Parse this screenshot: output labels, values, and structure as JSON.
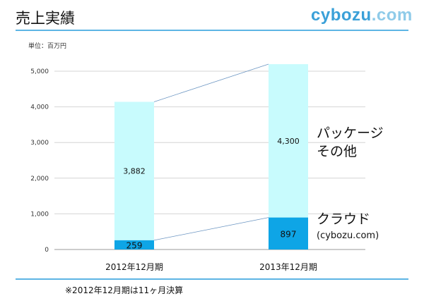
{
  "header": {
    "title": "売上実績",
    "brand_main": "cybozu",
    "brand_suffix": ".com"
  },
  "unit_label": "単位：百万円",
  "legend": {
    "package_line1": "パッケージ",
    "package_line2": "その他",
    "cloud_line1": "クラウド",
    "cloud_line2": "(cybozu.com)"
  },
  "footnote": "※2012年12月期は11ヶ月決算",
  "colors": {
    "cloud": "#0ea5e6",
    "package": "#c8fbfd",
    "accent_rule": "#5db5e4",
    "connector": "#6b95c2",
    "brand_main": "#3aa0d8",
    "brand_suffix": "#8fcbe9"
  },
  "chart_data": {
    "type": "bar",
    "stacked": true,
    "categories": [
      "2012年12月期",
      "2013年12月期"
    ],
    "series": [
      {
        "name": "クラウド (cybozu.com)",
        "values": [
          259,
          897
        ]
      },
      {
        "name": "パッケージ その他",
        "values": [
          3882,
          4300
        ]
      }
    ],
    "ylim": [
      0,
      5000
    ],
    "yticks": [
      0,
      1000,
      2000,
      3000,
      4000,
      5000
    ],
    "ytick_labels": [
      "0",
      "1,000",
      "2,000",
      "3,000",
      "4,000",
      "5,000"
    ],
    "data_labels": [
      [
        "259",
        "897"
      ],
      [
        "3,882",
        "4,300"
      ]
    ],
    "grid": true,
    "connector_lines": true
  }
}
